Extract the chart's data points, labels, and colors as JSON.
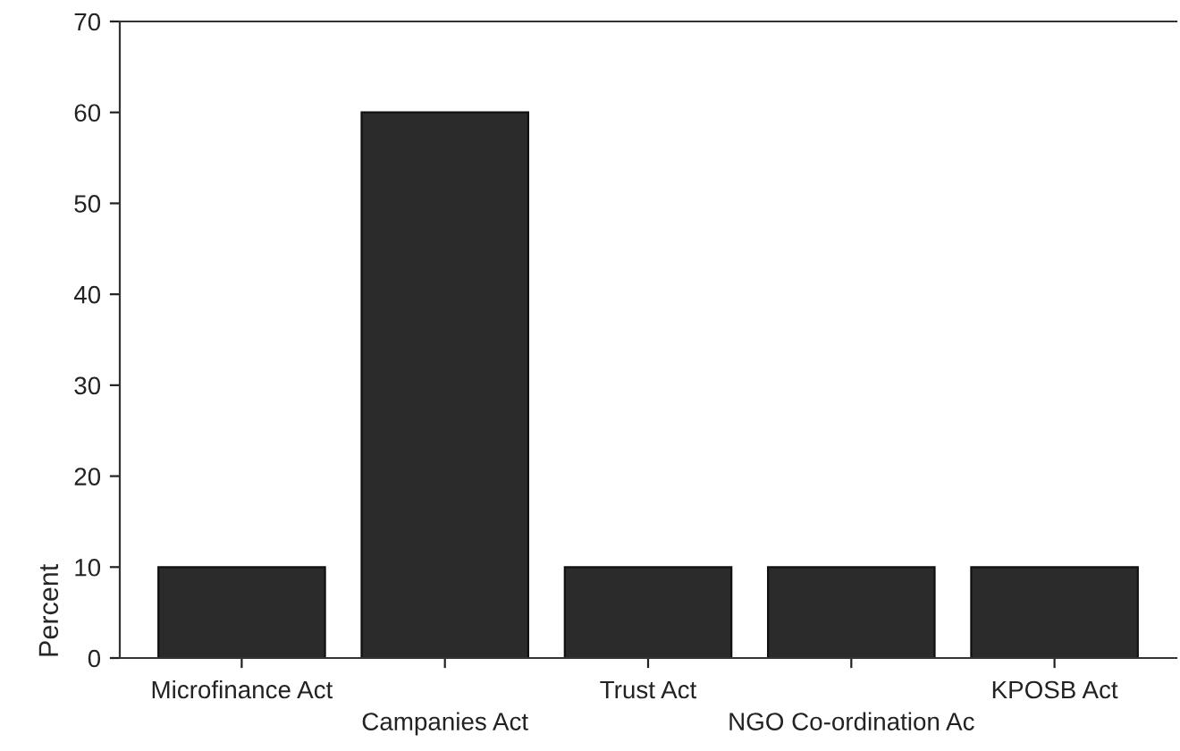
{
  "chart_data": {
    "type": "bar",
    "ylabel": "Percent",
    "categories": [
      "Microfinance Act",
      "Campanies Act",
      "Trust Act",
      "NGO Co-ordination Ac",
      "KPOSB Act"
    ],
    "values": [
      10,
      60,
      10,
      10,
      10
    ],
    "color": "#2b2b2b",
    "ylim": [
      0,
      70
    ],
    "yticks": [
      0,
      10,
      20,
      30,
      40,
      50,
      60,
      70
    ],
    "grid": false,
    "legend": false
  }
}
